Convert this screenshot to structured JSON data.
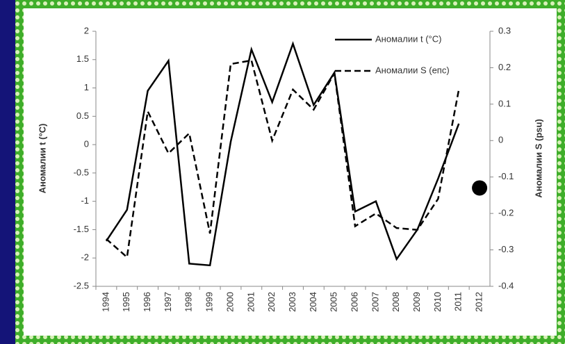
{
  "chart_data": {
    "type": "line",
    "y_label": "Аномалии t (°C)",
    "y2_label": "Аномалии S (psu)",
    "categories": [
      "1994",
      "1995",
      "1996",
      "1997",
      "1998",
      "1999",
      "2000",
      "2001",
      "2002",
      "2003",
      "2004",
      "2005",
      "2006",
      "2007",
      "2008",
      "2009",
      "2010",
      "2011",
      "2012"
    ],
    "series": [
      {
        "name": "Аномалии t (°C)",
        "color": "#000000",
        "dash": "solid",
        "axis": "y",
        "values": [
          -1.7,
          -1.15,
          0.95,
          1.48,
          -2.1,
          -2.13,
          0.05,
          1.68,
          0.75,
          1.78,
          0.7,
          1.27,
          -1.18,
          -1.0,
          -2.02,
          -1.5,
          -0.6,
          0.37,
          null
        ]
      },
      {
        "name": "Аномалии S (епс)",
        "color": "#000000",
        "dash": "dashed",
        "axis": "y2",
        "values": [
          -0.27,
          -0.32,
          0.08,
          -0.035,
          0.02,
          -0.255,
          0.21,
          0.22,
          0.0,
          0.14,
          0.085,
          0.185,
          -0.235,
          -0.2,
          -0.24,
          -0.245,
          -0.16,
          0.14,
          null
        ]
      },
      {
        "color": "#000000",
        "marker": "circle",
        "axis": "y2",
        "values": [
          null,
          null,
          null,
          null,
          null,
          null,
          null,
          null,
          null,
          null,
          null,
          null,
          null,
          null,
          null,
          null,
          null,
          null,
          -0.13
        ]
      }
    ],
    "ylim": [
      -2.5,
      2
    ],
    "yticks": [
      2,
      1.5,
      1,
      0.5,
      0,
      -0.5,
      -1,
      -1.5,
      -2,
      -2.5
    ],
    "y2lim": [
      -0.4,
      0.3
    ],
    "y2ticks": [
      0.3,
      0.2,
      0.1,
      0,
      -0.1,
      -0.2,
      -0.3,
      -0.4
    ],
    "grid": false,
    "legend": "top-right"
  }
}
